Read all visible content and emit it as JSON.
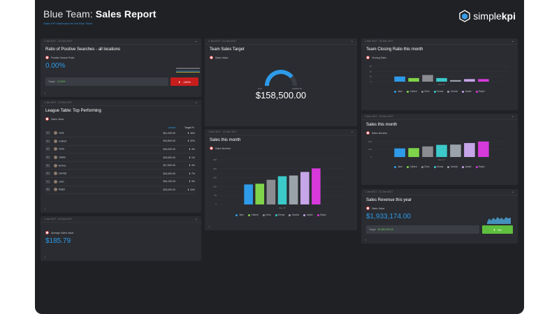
{
  "header": {
    "title_prefix": "Blue Team:",
    "title_main": "Sales Report",
    "subtitle": "Sales KPI dashboard for the Blue Team",
    "logo_text": "simple",
    "logo_bold": "kpi"
  },
  "cards": {
    "ratio": {
      "date": "1 Jan 2017 - 31 Dec 2017",
      "title": "Ratio of Positive Searches - all locations",
      "metric": "Positive Search Ratio",
      "value": "0.00%",
      "target_label": "Target",
      "target_value": "10.00%",
      "pct": "-100%",
      "info": "i"
    },
    "league": {
      "date": "1 Jan 2017 - 31 Dec 2017",
      "title": "League Table: Top Performing",
      "metric": "Sales Value",
      "col_actual": "Actual",
      "col_target": "Target %",
      "info": "i",
      "rows": [
        {
          "rank": "1",
          "name": "Jane",
          "value": "$21,200.00",
          "pct": "45%",
          "dir": "up"
        },
        {
          "rank": "2",
          "name": "Colbert",
          "value": "$19,800.00",
          "pct": "32%",
          "dir": "up"
        },
        {
          "rank": "3",
          "name": "Chris",
          "value": "$19,000.00",
          "pct": "4%",
          "dir": "up"
        },
        {
          "rank": "4",
          "name": "Jackie",
          "value": "$18,500.00",
          "pct": "1%",
          "dir": "up"
        },
        {
          "rank": "5",
          "name": "Emma",
          "value": "$17,500.00",
          "pct": "4%",
          "dir": "down"
        },
        {
          "rank": "6",
          "name": "Gerrick",
          "value": "$16,900.00",
          "pct": "7%",
          "dir": "down"
        },
        {
          "rank": "7",
          "name": "John",
          "value": "$16,100.00",
          "pct": "3%",
          "dir": "down"
        },
        {
          "rank": "8",
          "name": "Ralph",
          "value": "$15,000.00",
          "pct": "10%",
          "dir": "down"
        }
      ]
    },
    "avg": {
      "date": "1 Jan 2017 - 31 Dec 2017",
      "title": "",
      "metric": "Average Sales Value",
      "value": "$185.79",
      "info": "i"
    },
    "target": {
      "date": "1 Jan 2017 - 31 Dec 2017",
      "title": "Team Sales Target",
      "metric": "Sales Value",
      "gauge_left": "0.00",
      "gauge_right": "150000.00",
      "value": "$158,500.00",
      "gauge_fraction": 0.78
    },
    "sales_month": {
      "date": "1 Dec 2017 - 31 Dec 2017",
      "title": "Sales this month",
      "metric": "Sales Number",
      "info": "i"
    },
    "closing": {
      "date": "1 Dec 2017 - 31 Dec 2017",
      "title": "Team Closing Ratio this month",
      "metric": "Closing Ratio"
    },
    "sales_month2": {
      "date": "1 Dec 2017 - 31 Dec 2017",
      "title": "Sales this month",
      "metric": "Sales Number"
    },
    "revenue": {
      "date": "1 Jan 2017 - 31 Dec 2017",
      "title": "Sales Revenue this year",
      "metric": "Sales Value",
      "value": "$1,933,174.00",
      "target_label": "Target",
      "target_value": "$1,850,000.00",
      "pct": "5%",
      "info": "i"
    }
  },
  "colors": {
    "Jane": "#2e9bea",
    "Colbert": "#7fd34a",
    "Chris": "#8a8c92",
    "Emma": "#3bc9c9",
    "Gerrick": "#9aa2aa",
    "Jackie": "#c6a5e8",
    "Ralph": "#d63adb"
  },
  "chart_data": [
    {
      "type": "bar",
      "title": "Sales this month",
      "ylim": [
        0,
        250
      ],
      "yticks": [
        "250",
        "200",
        "150",
        "100",
        "50",
        "0"
      ],
      "xlabel": "Dec 17",
      "categories": [
        "Jane",
        "Colbert",
        "Chris",
        "Emma",
        "Gerrick",
        "Jackie",
        "Ralph"
      ],
      "values": [
        112,
        116,
        138,
        158,
        162,
        182,
        202
      ]
    },
    {
      "type": "bar",
      "title": "Team Closing Ratio this month",
      "ylim": [
        0,
        30
      ],
      "yticks": [
        "30",
        "20",
        "10",
        "0"
      ],
      "xlabel": "Dec 17",
      "categories": [
        "Jane",
        "Colbert",
        "Chris",
        "Emma",
        "Gerrick",
        "Jackie",
        "Ralph"
      ],
      "values": [
        10,
        7,
        13,
        7,
        3,
        5,
        5
      ]
    },
    {
      "type": "bar",
      "title": "Sales this month",
      "ylim": [
        0,
        200
      ],
      "yticks": [
        "200",
        "100",
        "0"
      ],
      "xlabel": "Dec 17",
      "categories": [
        "Jane",
        "Colbert",
        "Chris",
        "Emma",
        "Gerrick",
        "Jackie",
        "Ralph"
      ],
      "values": [
        112,
        116,
        138,
        158,
        162,
        182,
        202
      ]
    }
  ]
}
